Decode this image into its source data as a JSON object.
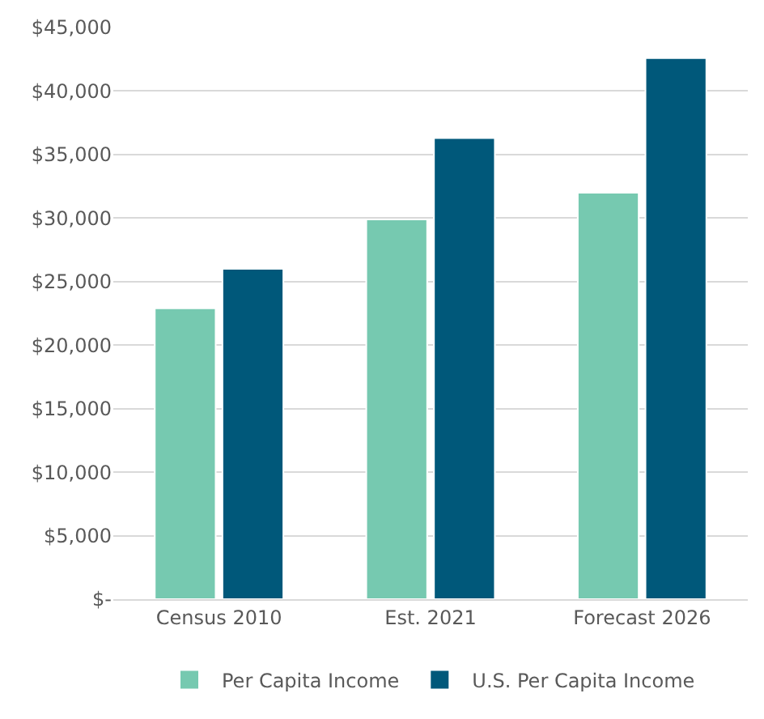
{
  "chart_data": {
    "type": "bar",
    "categories": [
      "Census 2010",
      "Est. 2021",
      "Forecast 2026"
    ],
    "series": [
      {
        "name": "Per Capita Income",
        "color": "#76c9b0",
        "values": [
          22900,
          29900,
          32000
        ]
      },
      {
        "name": "U.S. Per Capita Income",
        "color": "#00587a",
        "values": [
          26000,
          36300,
          42600
        ]
      }
    ],
    "ylim": [
      0,
      45000
    ],
    "yticks": [
      {
        "value": 0,
        "label": "$-"
      },
      {
        "value": 5000,
        "label": "$5,000"
      },
      {
        "value": 10000,
        "label": "$10,000"
      },
      {
        "value": 15000,
        "label": "$15,000"
      },
      {
        "value": 20000,
        "label": "$20,000"
      },
      {
        "value": 25000,
        "label": "$25,000"
      },
      {
        "value": 30000,
        "label": "$30,000"
      },
      {
        "value": 35000,
        "label": "$35,000"
      },
      {
        "value": 40000,
        "label": "$40,000"
      },
      {
        "value": 45000,
        "label": "$45,000"
      }
    ],
    "grid": "y",
    "legend": "bottom"
  }
}
